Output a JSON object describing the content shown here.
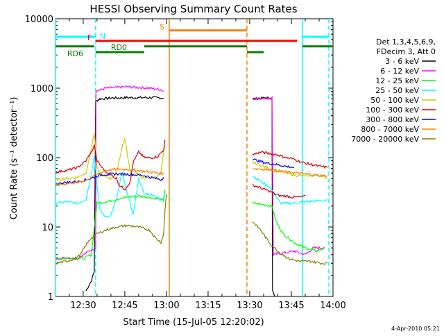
{
  "chart_data": {
    "type": "line",
    "title": "HESSI Observing Summary Count Rates",
    "xlabel": "Start Time (15-Jul-05 12:20:02)",
    "ylabel": "Count Rate (s⁻¹ detector⁻¹)",
    "yscale": "log",
    "xlim_minutes_after_12_00": [
      20.03,
      120
    ],
    "ylim": [
      1,
      10000
    ],
    "x_ticks": [
      {
        "m": 30,
        "label": "12:30"
      },
      {
        "m": 45,
        "label": "12:45"
      },
      {
        "m": 60,
        "label": "13:00"
      },
      {
        "m": 75,
        "label": "13:15"
      },
      {
        "m": 90,
        "label": "13:30"
      },
      {
        "m": 105,
        "label": "13:45"
      },
      {
        "m": 120,
        "label": "14:00"
      }
    ],
    "y_ticks": [
      {
        "v": 1,
        "label": "1"
      },
      {
        "v": 10,
        "label": "10"
      },
      {
        "v": 100,
        "label": "100"
      },
      {
        "v": 1000,
        "label": "1000"
      },
      {
        "v": 10000,
        "label": "10000"
      }
    ],
    "legend": {
      "placement": "right",
      "header": [
        "Det 1,3,4,5,6,9,",
        "FDecim 3, Att 0"
      ],
      "entries": [
        {
          "label": "3 - 6 keV",
          "color": "#000000"
        },
        {
          "label": "6 - 12 keV",
          "color": "#ff00ff"
        },
        {
          "label": "12 - 25 keV",
          "color": "#00ff00"
        },
        {
          "label": "25 - 50 keV",
          "color": "#00ffff"
        },
        {
          "label": "50 - 100 keV",
          "color": "#cccc00"
        },
        {
          "label": "100 - 300 keV",
          "color": "#dd0000"
        },
        {
          "label": "300 - 800 keV",
          "color": "#0000ff"
        },
        {
          "label": "800 - 7000 keV",
          "color": "#ff8000"
        },
        {
          "label": "7000 - 20000 keV",
          "color": "#808000"
        }
      ]
    },
    "flag_bars": [
      {
        "label": "N",
        "color": "#00ffff",
        "y": 5500,
        "segments": [
          [
            20.03,
            34.5
          ],
          [
            109,
            118.5
          ]
        ]
      },
      {
        "label": "S",
        "color": "#ff8000",
        "y": 6800,
        "segments": [
          [
            61,
            89
          ]
        ]
      },
      {
        "label": "F",
        "color": "#ff0000",
        "y": 4800,
        "segments": [
          [
            34.5,
            107
          ]
        ]
      },
      {
        "label": "RD0",
        "color": "#008000",
        "y": 4000,
        "segments": [
          [
            20.03,
            34
          ],
          [
            52,
            89
          ],
          [
            109,
            120
          ]
        ]
      },
      {
        "label": "RD6",
        "color": "#008000",
        "y": 3300,
        "segments": [
          [
            34.5,
            52
          ],
          [
            89,
            95
          ]
        ]
      }
    ],
    "vlines": [
      {
        "m": 20.03,
        "color": "#00ffff",
        "style": "solid"
      },
      {
        "m": 34.5,
        "color": "#00ffff",
        "style": "dashed"
      },
      {
        "m": 61,
        "color": "#ff8000",
        "style": "solid"
      },
      {
        "m": 89,
        "color": "#ff8000",
        "style": "dashed"
      },
      {
        "m": 109,
        "color": "#00ffff",
        "style": "solid"
      },
      {
        "m": 118.5,
        "color": "#00ffff",
        "style": "dashed"
      }
    ],
    "series": [
      {
        "name": "3 - 6 keV",
        "color": "#000000",
        "segments": [
          [
            [
              31,
              1.2
            ],
            [
              33,
              1.7
            ],
            [
              34,
              2.3
            ],
            [
              34.5,
              650
            ],
            [
              36,
              700
            ],
            [
              40,
              720
            ],
            [
              45,
              730
            ],
            [
              50,
              730
            ],
            [
              55,
              730
            ],
            [
              59,
              720
            ]
          ],
          [
            [
              91,
              700
            ],
            [
              95,
              720
            ],
            [
              98,
              720
            ],
            [
              98.2,
              1.2
            ],
            [
              99,
              1
            ]
          ]
        ]
      },
      {
        "name": "6 - 12 keV",
        "color": "#ff00ff",
        "segments": [
          [
            [
              20.1,
              3.5
            ],
            [
              24,
              3.6
            ],
            [
              28,
              3.5
            ],
            [
              30,
              4
            ],
            [
              32,
              4.5
            ],
            [
              34.5,
              5
            ],
            [
              34.6,
              900
            ],
            [
              38,
              1000
            ],
            [
              42,
              1020
            ],
            [
              46,
              1050
            ],
            [
              50,
              1020
            ],
            [
              54,
              1000
            ],
            [
              58,
              950
            ],
            [
              59,
              900
            ]
          ],
          [
            [
              91,
              700
            ],
            [
              95,
              720
            ],
            [
              98,
              720
            ],
            [
              98.5,
              4
            ],
            [
              102,
              4.2
            ],
            [
              106,
              4.5
            ],
            [
              110,
              4
            ],
            [
              113,
              5
            ],
            [
              117,
              5
            ]
          ]
        ]
      },
      {
        "name": "12 - 25 keV",
        "color": "#00ff00",
        "segments": [
          [
            [
              20.1,
              3.5
            ],
            [
              25,
              3.6
            ],
            [
              30,
              3.5
            ],
            [
              33,
              4
            ],
            [
              34,
              10
            ],
            [
              35,
              22
            ],
            [
              38,
              23
            ],
            [
              42,
              25
            ],
            [
              46,
              27
            ],
            [
              50,
              28
            ],
            [
              53,
              27
            ],
            [
              56,
              26
            ],
            [
              59,
              24
            ],
            [
              59.5,
              35
            ]
          ],
          [
            [
              91,
              22
            ],
            [
              95,
              21
            ],
            [
              98,
              20
            ],
            [
              99.5,
              12
            ],
            [
              102,
              8
            ],
            [
              106,
              6
            ],
            [
              110,
              5
            ],
            [
              114,
              4.5
            ],
            [
              117,
              5
            ]
          ]
        ]
      },
      {
        "name": "25 - 50 keV",
        "color": "#00ffff",
        "segments": [
          [
            [
              20.1,
              22
            ],
            [
              24,
              23
            ],
            [
              28,
              22
            ],
            [
              31,
              25
            ],
            [
              33,
              60
            ],
            [
              34,
              110
            ],
            [
              35,
              40
            ],
            [
              36,
              18
            ],
            [
              38,
              14
            ],
            [
              40,
              15
            ],
            [
              42,
              25
            ],
            [
              44,
              60
            ],
            [
              46,
              30
            ],
            [
              48,
              15
            ],
            [
              50,
              50
            ],
            [
              52,
              30
            ],
            [
              54,
              30
            ],
            [
              56,
              28
            ],
            [
              58,
              24
            ],
            [
              59,
              28
            ],
            [
              59.5,
              30
            ]
          ],
          [
            [
              91,
              55
            ],
            [
              94,
              45
            ],
            [
              97,
              38
            ],
            [
              99,
              30
            ],
            [
              101,
              22
            ],
            [
              105,
              22
            ],
            [
              110,
              23
            ],
            [
              115,
              24
            ],
            [
              118,
              24
            ]
          ]
        ]
      },
      {
        "name": "50 - 100 keV",
        "color": "#cccc00",
        "segments": [
          [
            [
              20.1,
              48
            ],
            [
              24,
              50
            ],
            [
              28,
              52
            ],
            [
              31,
              60
            ],
            [
              33,
              140
            ],
            [
              34,
              230
            ],
            [
              35,
              70
            ],
            [
              37,
              55
            ],
            [
              40,
              50
            ],
            [
              42,
              60
            ],
            [
              44,
              140
            ],
            [
              45,
              190
            ],
            [
              47,
              60
            ],
            [
              48,
              70
            ],
            [
              50,
              55
            ],
            [
              52,
              50
            ],
            [
              55,
              52
            ],
            [
              57,
              55
            ],
            [
              58,
              60
            ],
            [
              59,
              120
            ],
            [
              59.5,
              150
            ]
          ],
          [
            [
              91,
              85
            ],
            [
              95,
              75
            ],
            [
              99,
              65
            ],
            [
              103,
              60
            ],
            [
              107,
              55
            ],
            [
              111,
              55
            ],
            [
              116,
              55
            ],
            [
              118,
              50
            ]
          ]
        ]
      },
      {
        "name": "100 - 300 keV",
        "color": "#dd0000",
        "segments": [
          [
            [
              20.1,
              62
            ],
            [
              24,
              65
            ],
            [
              28,
              72
            ],
            [
              31,
              90
            ],
            [
              33,
              120
            ],
            [
              34,
              150
            ],
            [
              35,
              90
            ],
            [
              37,
              70
            ],
            [
              39,
              58
            ],
            [
              40,
              56
            ],
            [
              42,
              50
            ],
            [
              43,
              40
            ],
            [
              45,
              35
            ],
            [
              47,
              45
            ],
            [
              48,
              85
            ],
            [
              50,
              120
            ],
            [
              52,
              100
            ],
            [
              55,
              100
            ],
            [
              57,
              105
            ],
            [
              59,
              130
            ],
            [
              59.5,
              180
            ]
          ],
          [
            [
              91,
              40
            ],
            [
              93,
              38
            ],
            [
              95,
              35
            ],
            [
              97,
              33
            ],
            [
              99,
              30
            ],
            [
              101,
              28
            ],
            [
              103,
              28
            ],
            [
              105,
              27
            ],
            [
              107,
              27
            ],
            [
              109,
              27
            ],
            [
              110,
              28
            ]
          ]
        ]
      },
      {
        "name": "300 - 800 keV",
        "color": "#0000ff",
        "segments": [
          [
            [
              20.1,
              42
            ],
            [
              24,
              44
            ],
            [
              28,
              45
            ],
            [
              31,
              48
            ],
            [
              34,
              52
            ],
            [
              36,
              56
            ],
            [
              40,
              58
            ],
            [
              44,
              58
            ],
            [
              48,
              57
            ],
            [
              52,
              55
            ],
            [
              56,
              50
            ],
            [
              58,
              48
            ],
            [
              59,
              52
            ]
          ],
          [
            [
              91,
              95
            ],
            [
              95,
              85
            ],
            [
              99,
              80
            ],
            [
              103,
              75
            ],
            [
              106,
              72
            ]
          ]
        ]
      },
      {
        "name": "800 - 7000 keV",
        "color": "#ff8000",
        "segments": [
          [
            [
              20.1,
              40
            ],
            [
              24,
              42
            ],
            [
              28,
              44
            ],
            [
              31,
              47
            ],
            [
              34,
              55
            ],
            [
              38,
              65
            ],
            [
              42,
              68
            ],
            [
              46,
              68
            ],
            [
              50,
              65
            ],
            [
              54,
              62
            ],
            [
              57,
              60
            ],
            [
              59,
              58
            ]
          ],
          [
            [
              91,
              70
            ],
            [
              95,
              68
            ],
            [
              99,
              66
            ],
            [
              103,
              62
            ],
            [
              107,
              60
            ],
            [
              111,
              58
            ],
            [
              115,
              55
            ],
            [
              118,
              55
            ]
          ]
        ]
      },
      {
        "name": "100 - 300 keV (2)",
        "color": "#dd0000",
        "segments": [
          [
            [
              91,
              110
            ],
            [
              94,
              120
            ],
            [
              97,
              115
            ],
            [
              100,
              110
            ],
            [
              103,
              100
            ],
            [
              106,
              95
            ],
            [
              109,
              85
            ],
            [
              112,
              80
            ],
            [
              115,
              75
            ],
            [
              118,
              72
            ]
          ]
        ]
      },
      {
        "name": "7000 - 20000 keV",
        "color": "#808000",
        "segments": [
          [
            [
              20.1,
              3
            ],
            [
              24,
              3.2
            ],
            [
              27,
              3.5
            ],
            [
              29,
              4
            ],
            [
              31,
              5.5
            ],
            [
              33,
              7
            ],
            [
              35,
              8
            ],
            [
              38,
              9
            ],
            [
              42,
              10
            ],
            [
              46,
              10.5
            ],
            [
              50,
              10
            ],
            [
              54,
              9
            ],
            [
              56,
              7
            ],
            [
              58,
              6
            ],
            [
              59,
              8
            ],
            [
              59.5,
              18
            ],
            [
              60,
              30
            ]
          ],
          [
            [
              91,
              12
            ],
            [
              94,
              9
            ],
            [
              97,
              6
            ],
            [
              100,
              4.5
            ],
            [
              104,
              3.5
            ],
            [
              108,
              3.2
            ],
            [
              112,
              3.2
            ],
            [
              116,
              3
            ],
            [
              118,
              3
            ]
          ]
        ]
      }
    ],
    "footer_date": "4-Apr-2010 05:21"
  }
}
